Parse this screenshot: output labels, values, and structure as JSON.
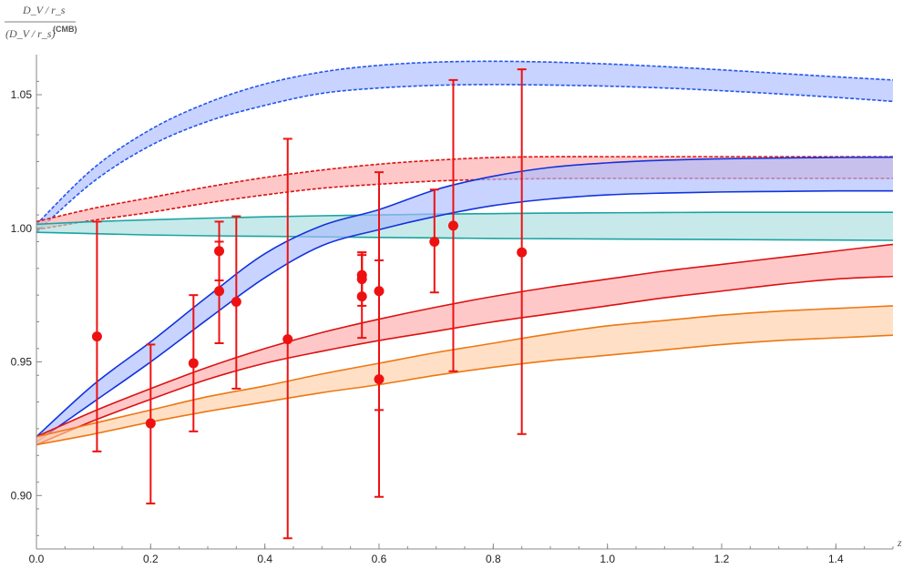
{
  "chart_data": {
    "type": "line",
    "x_range": [
      0,
      1.5
    ],
    "y_range": [
      0.88,
      1.065
    ],
    "x_ticks": [
      {
        "value": 0.0,
        "label": "0.0"
      },
      {
        "value": 0.2,
        "label": "0.2"
      },
      {
        "value": 0.4,
        "label": "0.4"
      },
      {
        "value": 0.6,
        "label": "0.6"
      },
      {
        "value": 0.8,
        "label": "0.8"
      },
      {
        "value": 1.0,
        "label": "1.0"
      },
      {
        "value": 1.2,
        "label": "1.2"
      },
      {
        "value": 1.4,
        "label": "1.4"
      }
    ],
    "y_ticks": [
      {
        "value": 0.9,
        "label": "0.90"
      },
      {
        "value": 0.95,
        "label": "0.95"
      },
      {
        "value": 1.0,
        "label": "1.00"
      },
      {
        "value": 1.05,
        "label": "1.05"
      }
    ],
    "xlabel": "z",
    "ylabel": {
      "numerator": "D_V / r_s",
      "denominator": "(D_V / r_s)",
      "superscript": "(CMB)"
    },
    "x_sample": [
      0.0,
      0.1,
      0.2,
      0.3,
      0.4,
      0.5,
      0.6,
      0.7,
      0.8,
      0.9,
      1.0,
      1.1,
      1.2,
      1.3,
      1.4,
      1.5
    ],
    "bands": [
      {
        "color": "#2255ee",
        "fill": "#aabbff",
        "dashed": true,
        "upper": [
          1.0015,
          1.0225,
          1.037,
          1.047,
          1.054,
          1.0585,
          1.061,
          1.0622,
          1.0625,
          1.0622,
          1.0615,
          1.0605,
          1.0593,
          1.058,
          1.0567,
          1.0555
        ],
        "lower": [
          0.9985,
          1.0175,
          1.031,
          1.04,
          1.046,
          1.0505,
          1.0525,
          1.0535,
          1.0538,
          1.0536,
          1.0532,
          1.0525,
          1.0515,
          1.0503,
          1.049,
          1.0475
        ]
      },
      {
        "color": "#dd1111",
        "fill": "#ffaaaa",
        "dashed": true,
        "upper": [
          1.0025,
          1.0075,
          1.0115,
          1.0155,
          1.019,
          1.0218,
          1.024,
          1.0255,
          1.0265,
          1.0268,
          1.0268,
          1.0268,
          1.0268,
          1.0268,
          1.0268,
          1.0268
        ],
        "lower": [
          0.9995,
          1.003,
          1.006,
          1.0095,
          1.0125,
          1.015,
          1.0165,
          1.0177,
          1.0183,
          1.0186,
          1.0187,
          1.0187,
          1.0187,
          1.0187,
          1.0187,
          1.0187
        ]
      },
      {
        "color": "#1aa3a3",
        "fill": "#aadddd",
        "dashed": false,
        "upper": [
          1.0015,
          1.0025,
          1.0032,
          1.0038,
          1.0043,
          1.0047,
          1.005,
          1.0053,
          1.0055,
          1.0057,
          1.0058,
          1.0059,
          1.006,
          1.006,
          1.006,
          1.006
        ],
        "lower": [
          0.9985,
          0.998,
          0.9975,
          0.9972,
          0.997,
          0.9968,
          0.9966,
          0.9964,
          0.9962,
          0.9961,
          0.996,
          0.9959,
          0.9958,
          0.9957,
          0.9956,
          0.9955
        ]
      },
      {
        "color": "#1133dd",
        "fill": "#aabbff",
        "dashed": false,
        "upper": [
          0.922,
          0.9415,
          0.9575,
          0.9745,
          0.9905,
          1.001,
          1.007,
          1.0145,
          1.0195,
          1.0228,
          1.0245,
          1.0255,
          1.026,
          1.0263,
          1.0265,
          1.0266
        ],
        "lower": [
          0.92,
          0.935,
          0.95,
          0.966,
          0.9815,
          0.9935,
          0.9995,
          1.0045,
          1.0085,
          1.011,
          1.0125,
          1.0132,
          1.0136,
          1.0138,
          1.014,
          1.014
        ]
      },
      {
        "color": "#dd1111",
        "fill": "#ffaaaa",
        "dashed": false,
        "upper": [
          0.922,
          0.9315,
          0.94,
          0.948,
          0.955,
          0.961,
          0.966,
          0.9705,
          0.9745,
          0.978,
          0.981,
          0.984,
          0.9865,
          0.989,
          0.9915,
          0.994
        ],
        "lower": [
          0.919,
          0.928,
          0.936,
          0.9435,
          0.9495,
          0.954,
          0.958,
          0.9615,
          0.965,
          0.968,
          0.971,
          0.974,
          0.9765,
          0.979,
          0.981,
          0.982
        ]
      },
      {
        "color": "#ee7711",
        "fill": "#ffd0a8",
        "dashed": false,
        "upper": [
          0.922,
          0.927,
          0.932,
          0.937,
          0.941,
          0.9455,
          0.9495,
          0.9535,
          0.957,
          0.9605,
          0.9635,
          0.9655,
          0.9675,
          0.969,
          0.97,
          0.971
        ],
        "lower": [
          0.919,
          0.923,
          0.9275,
          0.9315,
          0.935,
          0.9385,
          0.9415,
          0.945,
          0.948,
          0.9505,
          0.9525,
          0.9545,
          0.9565,
          0.958,
          0.959,
          0.96
        ]
      }
    ],
    "points": [
      {
        "x": 0.106,
        "y": 0.9595,
        "low": 0.9165,
        "high": 1.0025
      },
      {
        "x": 0.2,
        "y": 0.927,
        "low": 0.897,
        "high": 0.9565
      },
      {
        "x": 0.275,
        "y": 0.9495,
        "low": 0.924,
        "high": 0.975
      },
      {
        "x": 0.32,
        "y": 0.9915,
        "low": 0.9805,
        "high": 1.0025
      },
      {
        "x": 0.32,
        "y": 0.9765,
        "low": 0.957,
        "high": 0.995
      },
      {
        "x": 0.35,
        "y": 0.9725,
        "low": 0.94,
        "high": 1.0045
      },
      {
        "x": 0.44,
        "y": 0.9585,
        "low": 0.884,
        "high": 1.0335
      },
      {
        "x": 0.57,
        "y": 0.9825,
        "low": 0.974,
        "high": 0.991
      },
      {
        "x": 0.57,
        "y": 0.981,
        "low": 0.971,
        "high": 0.991
      },
      {
        "x": 0.57,
        "y": 0.9745,
        "low": 0.959,
        "high": 0.99
      },
      {
        "x": 0.6,
        "y": 0.9765,
        "low": 0.932,
        "high": 1.021
      },
      {
        "x": 0.6,
        "y": 0.9435,
        "low": 0.8995,
        "high": 0.988
      },
      {
        "x": 0.697,
        "y": 0.995,
        "low": 0.976,
        "high": 1.0145
      },
      {
        "x": 0.73,
        "y": 1.001,
        "low": 0.9465,
        "high": 1.0555
      },
      {
        "x": 0.85,
        "y": 0.991,
        "low": 0.923,
        "high": 1.0595
      }
    ],
    "point_color": "#ee1111"
  }
}
